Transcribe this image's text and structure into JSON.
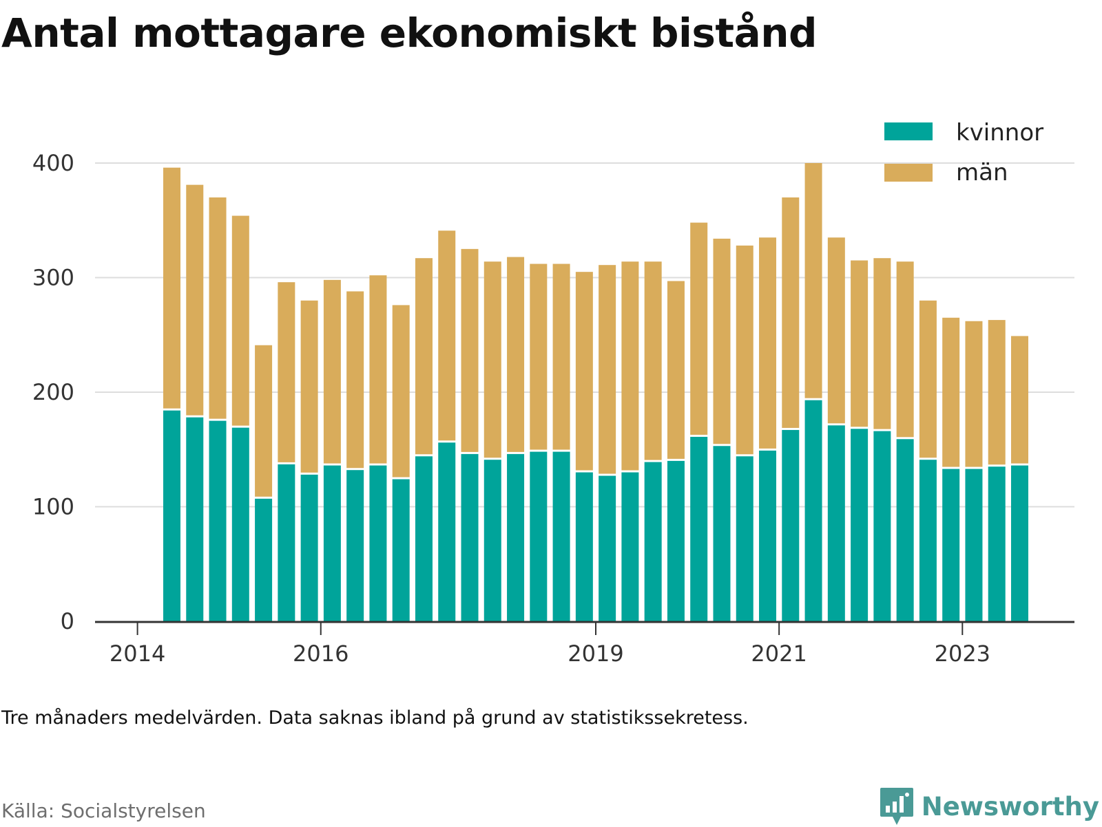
{
  "title": "Antal mottagare ekonomiskt bistånd",
  "note": "Tre månaders medelvärden. Data saknas ibland på grund av statistikssekretess.",
  "source": "Källa: Socialstyrelsen",
  "brand": {
    "name": "Newsworthy",
    "icon": "newsworthy-logo-icon",
    "color": "#4a9a96"
  },
  "colors": {
    "kvinnor": "#00a49a",
    "man": "#d9ac5b",
    "grid": "#dddddd",
    "axis": "#333333"
  },
  "chart_data": {
    "type": "bar",
    "stacked": true,
    "title": "Antal mottagare ekonomiskt bistånd",
    "xlabel": "",
    "ylabel": "",
    "ylim": [
      0,
      400
    ],
    "yticks": [
      0,
      100,
      200,
      300,
      400
    ],
    "xtick_labels": [
      "2014",
      "2016",
      "2019",
      "2021",
      "2023"
    ],
    "grid": true,
    "legend_position": "top-right",
    "series": [
      {
        "name": "kvinnor",
        "values": [
          184,
          178,
          175,
          169,
          107,
          137,
          128,
          136,
          132,
          136,
          124,
          144,
          156,
          146,
          141,
          146,
          148,
          148,
          130,
          127,
          130,
          139,
          140,
          161,
          153,
          144,
          149,
          167,
          193,
          171,
          168,
          166,
          159,
          141,
          133,
          133,
          135,
          136
        ]
      },
      {
        "name": "män",
        "values": [
          212,
          203,
          195,
          185,
          134,
          159,
          152,
          162,
          156,
          166,
          152,
          173,
          185,
          179,
          173,
          172,
          164,
          164,
          175,
          184,
          184,
          175,
          157,
          187,
          181,
          184,
          186,
          203,
          207,
          164,
          147,
          151,
          155,
          139,
          132,
          129,
          128,
          113
        ]
      }
    ]
  }
}
